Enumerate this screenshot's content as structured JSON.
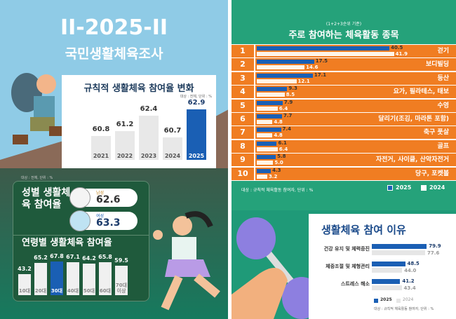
{
  "header": {
    "year_title": "II-2025-II",
    "survey_title": "국민생활체육조사"
  },
  "colors": {
    "blue": "#1a5fb4",
    "orange": "#f07d22",
    "green": "#25a27a",
    "gray_bar": "#e8e8e8"
  },
  "chart_data": [
    {
      "type": "bar",
      "title": "규칙적 생활체육 참여율 변화",
      "note": "대상 : 전체, 단위 : %",
      "categories": [
        "2021",
        "2022",
        "2023",
        "2024",
        "2025"
      ],
      "values": [
        60.8,
        61.2,
        62.4,
        60.7,
        62.9
      ],
      "highlight": "2025"
    },
    {
      "type": "table",
      "title": "성별 생활체육 참여율",
      "note": "대상 : 전체, 단위 : %",
      "rows": [
        {
          "label": "남성",
          "value": "62.6"
        },
        {
          "label": "여성",
          "value": "63.3"
        }
      ]
    },
    {
      "type": "bar",
      "title": "연령별 생활체육 참여율",
      "categories": [
        "10대",
        "20대",
        "30대",
        "40대",
        "50대",
        "60대",
        "70대 이상"
      ],
      "values": [
        43.2,
        65.2,
        67.8,
        67.1,
        64.2,
        65.8,
        59.5
      ],
      "highlight": "30대"
    },
    {
      "type": "bar",
      "orientation": "horizontal",
      "title": "주로 참여하는 체육활동 종목",
      "subtitle": "(1+2+3순위 기준)",
      "note": "대상 : 규칙적 체육활동 참여자, 단위 : %",
      "categories": [
        "걷기",
        "보디빌딩",
        "등산",
        "요가, 필라테스, 태보",
        "수영",
        "달리기(조깅, 마라톤 포함)",
        "축구 풋살",
        "골프",
        "자전거, 사이클, 산악자전거",
        "당구, 포켓볼"
      ],
      "series": [
        {
          "name": "2025",
          "values": [
            40.5,
            17.5,
            17.1,
            9.3,
            7.9,
            7.7,
            7.4,
            6.1,
            5.8,
            4.3
          ]
        },
        {
          "name": "2024",
          "values": [
            41.9,
            14.6,
            12.1,
            8.5,
            6.4,
            4.8,
            4.8,
            6.4,
            5.0,
            3.2
          ]
        }
      ]
    },
    {
      "type": "bar",
      "orientation": "horizontal",
      "title": "생활체육 참여 이유",
      "note": "대상 : 규칙적 체육활동 참여자, 단위 : %",
      "categories": [
        "건강 유지 및 체력증진",
        "체중조절 및 체형관리",
        "스트레스 해소"
      ],
      "series": [
        {
          "name": "2025",
          "values": [
            79.9,
            48.5,
            41.2
          ]
        },
        {
          "name": "2024",
          "values": [
            77.6,
            44.0,
            43.4
          ]
        }
      ]
    }
  ]
}
